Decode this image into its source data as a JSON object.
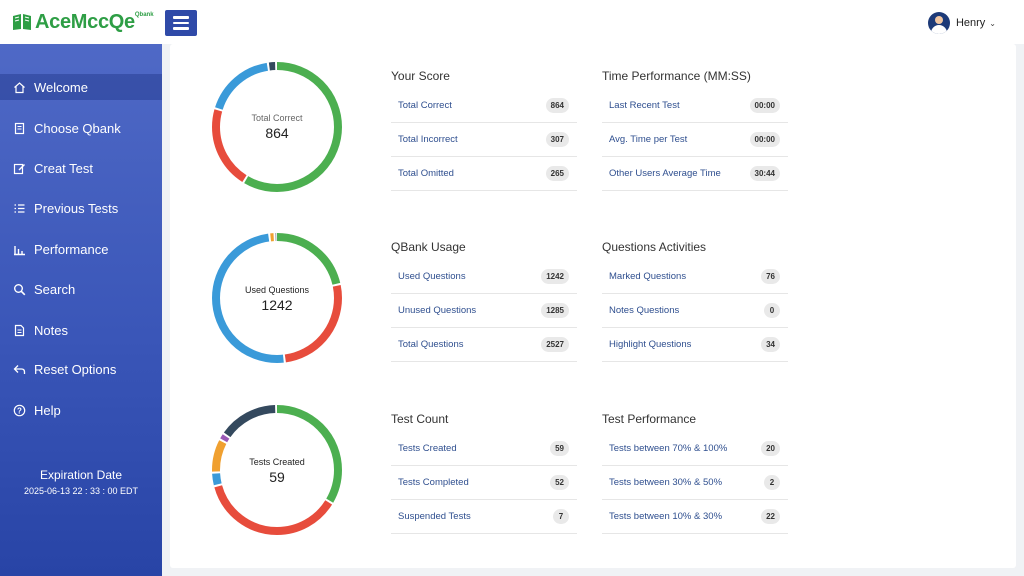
{
  "brand": {
    "name": "AceMccQe",
    "sup": "Qbank",
    "color": "#2e9e45"
  },
  "user": {
    "name": "Henry"
  },
  "sidebar": {
    "items": [
      {
        "label": "Welcome",
        "icon": "home-icon"
      },
      {
        "label": "Choose Qbank",
        "icon": "book-icon"
      },
      {
        "label": "Creat Test",
        "icon": "edit-icon"
      },
      {
        "label": "Previous Tests",
        "icon": "list-icon"
      },
      {
        "label": "Performance",
        "icon": "bar-chart-icon"
      },
      {
        "label": "Search",
        "icon": "search-icon"
      },
      {
        "label": "Notes",
        "icon": "note-icon"
      },
      {
        "label": "Reset Options",
        "icon": "undo-icon"
      },
      {
        "label": "Help",
        "icon": "help-icon"
      }
    ],
    "expiration_title": "Expiration Date",
    "expiration_date": "2025-06-13 22 : 33 : 00 EDT"
  },
  "colors": {
    "green": "#4caf50",
    "red": "#e74c3c",
    "blue": "#3a9ad9",
    "navy": "#34495e",
    "orange": "#f0a030",
    "purple": "#9b59b6"
  },
  "donuts": [
    {
      "label": "Total Correct",
      "value": "864",
      "segments": [
        {
          "color": "#4caf50",
          "value": 864
        },
        {
          "color": "#e74c3c",
          "value": 307
        },
        {
          "color": "#3a9ad9",
          "value": 265
        },
        {
          "color": "#34495e",
          "value": 30
        }
      ]
    },
    {
      "label": "Used Questions",
      "value": "1242",
      "segments": [
        {
          "color": "#4caf50",
          "value": 560
        },
        {
          "color": "#e74c3c",
          "value": 682
        },
        {
          "color": "#3a9ad9",
          "value": 1285
        },
        {
          "color": "#f0a030",
          "value": 34
        },
        {
          "color": "#34495e",
          "value": 10
        }
      ]
    },
    {
      "label": "Tests Created",
      "value": "59",
      "segments": [
        {
          "color": "#4caf50",
          "value": 20
        },
        {
          "color": "#e74c3c",
          "value": 22
        },
        {
          "color": "#3a9ad9",
          "value": 2
        },
        {
          "color": "#f0a030",
          "value": 5
        },
        {
          "color": "#9b59b6",
          "value": 1
        },
        {
          "color": "#34495e",
          "value": 9
        }
      ]
    }
  ],
  "stats": {
    "your_score": {
      "title": "Your Score",
      "rows": [
        {
          "label": "Total Correct",
          "value": "864"
        },
        {
          "label": "Total Incorrect",
          "value": "307"
        },
        {
          "label": "Total Omitted",
          "value": "265"
        }
      ]
    },
    "time_performance": {
      "title": "Time Performance (MM:SS)",
      "rows": [
        {
          "label": "Last Recent Test",
          "value": "00:00"
        },
        {
          "label": "Avg. Time per Test",
          "value": "00:00"
        },
        {
          "label": "Other Users Average Time",
          "value": "30:44"
        }
      ]
    },
    "qbank_usage": {
      "title": "QBank Usage",
      "rows": [
        {
          "label": "Used Questions",
          "value": "1242"
        },
        {
          "label": "Unused Questions",
          "value": "1285"
        },
        {
          "label": "Total Questions",
          "value": "2527"
        }
      ]
    },
    "question_activities": {
      "title": "Questions Activities",
      "rows": [
        {
          "label": "Marked Questions",
          "value": "76"
        },
        {
          "label": "Notes Questions",
          "value": "0"
        },
        {
          "label": "Highlight Questions",
          "value": "34"
        }
      ]
    },
    "test_count": {
      "title": "Test Count",
      "rows": [
        {
          "label": "Tests Created",
          "value": "59"
        },
        {
          "label": "Tests Completed",
          "value": "52"
        },
        {
          "label": "Suspended Tests",
          "value": "7"
        }
      ]
    },
    "test_performance": {
      "title": "Test Performance",
      "rows": [
        {
          "label": "Tests between 70% & 100%",
          "value": "20"
        },
        {
          "label": "Tests between 30% & 50%",
          "value": "2"
        },
        {
          "label": "Tests between 10% & 30%",
          "value": "22"
        }
      ]
    }
  }
}
